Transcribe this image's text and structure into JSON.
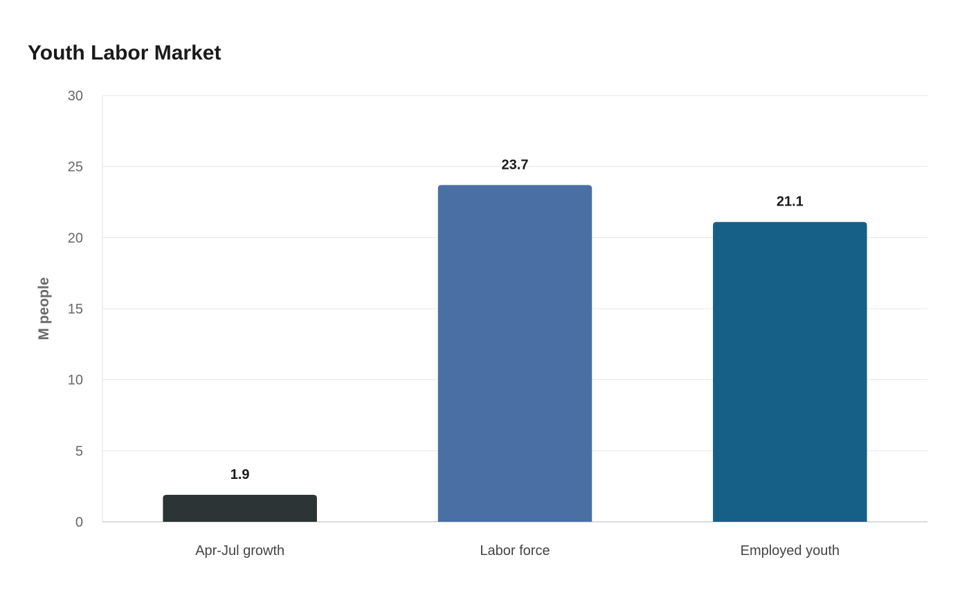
{
  "chart_data": {
    "type": "bar",
    "title": "Youth Labor Market",
    "xlabel": "",
    "ylabel": "M people",
    "ylim": [
      0,
      30
    ],
    "yticks": [
      0,
      5,
      10,
      15,
      20,
      25,
      30
    ],
    "grid": true,
    "categories": [
      "Apr-Jul growth",
      "Labor force",
      "Employed youth"
    ],
    "values": [
      1.9,
      23.7,
      21.1
    ],
    "data_labels": [
      "1.9",
      "23.7",
      "21.1"
    ],
    "colors": [
      "#2d3436",
      "#4a6fa5",
      "#166088"
    ]
  }
}
